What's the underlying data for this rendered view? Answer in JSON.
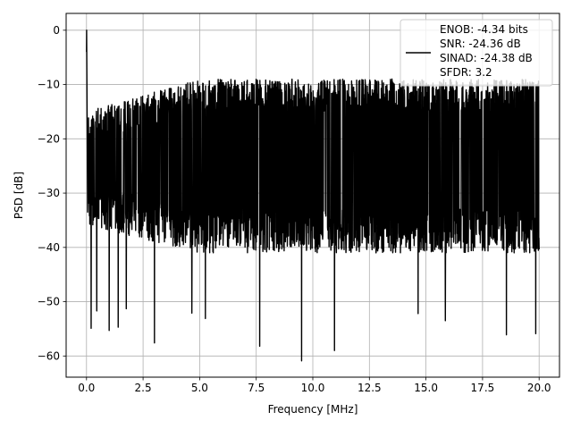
{
  "chart_data": {
    "type": "line",
    "title": "",
    "xlabel": "Frequency [MHz]",
    "ylabel": "PSD [dB]",
    "xlim": [
      -0.9,
      20.9
    ],
    "ylim": [
      -63.9,
      3.1
    ],
    "xticks": [
      0.0,
      2.5,
      5.0,
      7.5,
      10.0,
      12.5,
      15.0,
      17.5,
      20.0
    ],
    "xtick_labels": [
      "0.0",
      "2.5",
      "5.0",
      "7.5",
      "10.0",
      "12.5",
      "15.0",
      "17.5",
      "20.0"
    ],
    "yticks": [
      0,
      -10,
      -20,
      -30,
      -40,
      -50,
      -60
    ],
    "ytick_labels": [
      "0",
      "−10",
      "−20",
      "−30",
      "−40",
      "−50",
      "−60"
    ],
    "grid": true,
    "legend_position": "top-right",
    "legend_lines": [
      "ENOB: -4.34 bits",
      "SNR: -24.36 dB",
      "SINAD: -24.38 dB",
      "SFDR: 3.2"
    ],
    "series": [
      {
        "color": "#000000",
        "style": "dense-noise",
        "peak": {
          "x": 0.0,
          "y": 0.0
        },
        "start_y": -4.0,
        "envelope": {
          "upper": [
            -15,
            -9
          ],
          "lower": [
            -36,
            -41
          ]
        },
        "dips": [
          {
            "x": 0.05,
            "y": -33.5
          },
          {
            "x": 0.2,
            "y": -54.9
          },
          {
            "x": 0.45,
            "y": -51.7
          },
          {
            "x": 1.0,
            "y": -55.3
          },
          {
            "x": 1.4,
            "y": -54.7
          },
          {
            "x": 1.75,
            "y": -51.3
          },
          {
            "x": 3.0,
            "y": -57.6
          },
          {
            "x": 4.65,
            "y": -52.1
          },
          {
            "x": 5.25,
            "y": -53.1
          },
          {
            "x": 7.65,
            "y": -58.2
          },
          {
            "x": 9.5,
            "y": -60.9
          },
          {
            "x": 10.95,
            "y": -59.0
          },
          {
            "x": 14.65,
            "y": -52.2
          },
          {
            "x": 15.85,
            "y": -53.5
          },
          {
            "x": 18.55,
            "y": -56.1
          },
          {
            "x": 19.85,
            "y": -55.9
          }
        ]
      }
    ]
  }
}
